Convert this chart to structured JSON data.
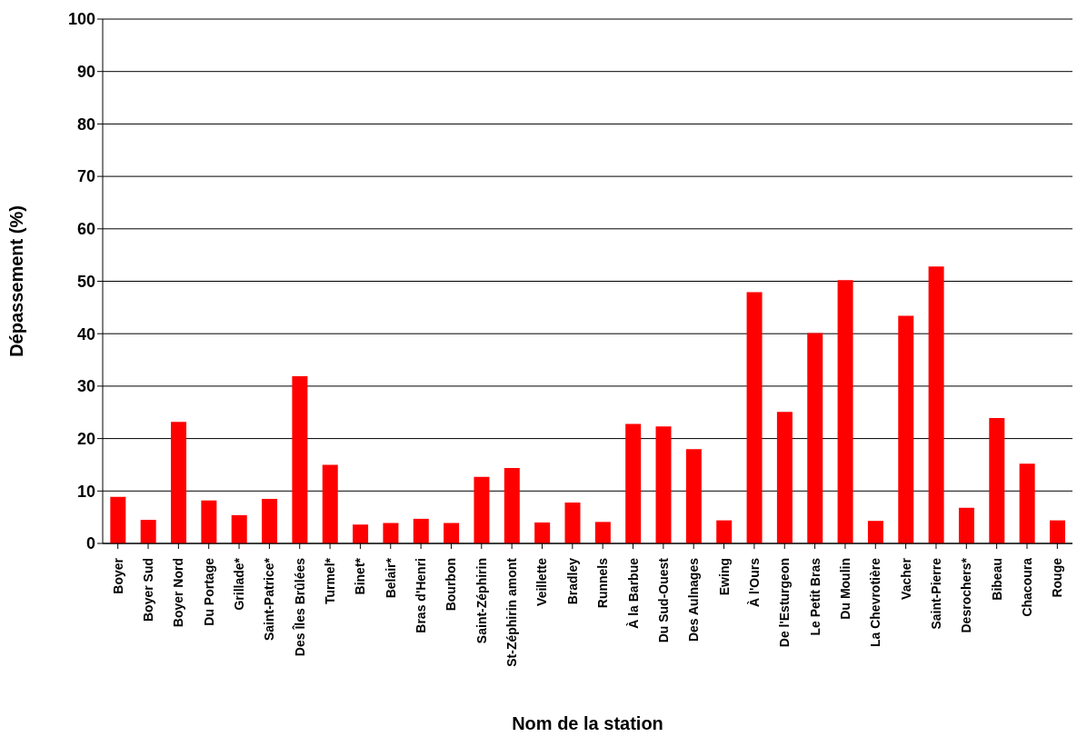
{
  "chart_data": {
    "type": "bar",
    "xlabel": "Nom de la station",
    "ylabel": "Dépassement (%)",
    "categories": [
      "Boyer",
      "Boyer Sud",
      "Boyer Nord",
      "Du Portage",
      "Grillade*",
      "Saint-Patrice*",
      "Des Îles Brûlées",
      "Turmel*",
      "Binet*",
      "Belair*",
      "Bras d'Henri",
      "Bourbon",
      "Saint-Zéphirin",
      "St-Zéphirin amont",
      "Veillette",
      "Bradley",
      "Runnels",
      "À la Barbue",
      "Du Sud-Ouest",
      "Des Aulnages",
      "Ewing",
      "À l'Ours",
      "De l'Esturgeon",
      "Le Petit Bras",
      "Du Moulin",
      "La Chevrotière",
      "Vacher",
      "Saint-Pierre",
      "Desrochers*",
      "Bibeau",
      "Chacoura",
      "Rouge"
    ],
    "values": [
      8.9,
      4.5,
      23.2,
      8.2,
      5.4,
      8.5,
      31.9,
      15.0,
      3.6,
      3.9,
      4.7,
      3.9,
      12.7,
      14.4,
      4.0,
      7.8,
      4.1,
      22.8,
      22.3,
      18.0,
      4.4,
      47.9,
      25.1,
      40.1,
      50.2,
      4.3,
      43.4,
      52.8,
      6.8,
      23.9,
      15.2,
      4.4
    ],
    "color": "#ff0000",
    "ylim": [
      0,
      100
    ],
    "yticks": [
      0,
      10,
      20,
      30,
      40,
      50,
      60,
      70,
      80,
      90,
      100
    ],
    "grid": "y"
  }
}
